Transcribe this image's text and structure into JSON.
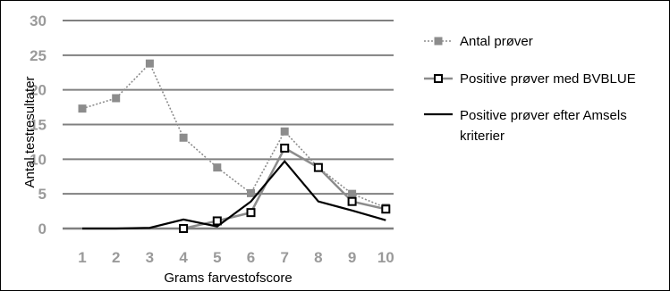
{
  "chart_data": {
    "type": "line",
    "title": "",
    "xlabel": "Grams farvestofscore",
    "ylabel": "Antal testresultater",
    "categories": [
      "1",
      "2",
      "3",
      "4",
      "5",
      "6",
      "7",
      "8",
      "9",
      "10"
    ],
    "ylim": [
      0,
      30
    ],
    "yticks": [
      "0",
      "5",
      "10",
      "15",
      "20",
      "25",
      "30"
    ],
    "grid": "horizontal",
    "legend_position": "right",
    "series": [
      {
        "name": "Antal prøver",
        "color": "#8c8c8c",
        "marker": "filled-square",
        "line": "dotted",
        "values": [
          17.3,
          18.8,
          23.8,
          13.1,
          8.8,
          5.1,
          14.0,
          8.8,
          5.0,
          3.0
        ]
      },
      {
        "name": "Positive prøver med BVBLUE",
        "color": "#000000",
        "marker": "open-square",
        "line": "solid-gray",
        "values": [
          null,
          null,
          null,
          0.0,
          1.1,
          2.3,
          11.6,
          8.8,
          3.9,
          2.8
        ]
      },
      {
        "name": "Positive prøver efter Amsels kriterier",
        "name_lines": [
          "Positive prøver efter Amsels",
          "kriterier"
        ],
        "color": "#000000",
        "marker": "none",
        "line": "solid",
        "values": [
          0.0,
          0.0,
          0.1,
          1.3,
          0.3,
          3.9,
          9.7,
          3.9,
          2.6,
          1.2
        ]
      }
    ]
  }
}
